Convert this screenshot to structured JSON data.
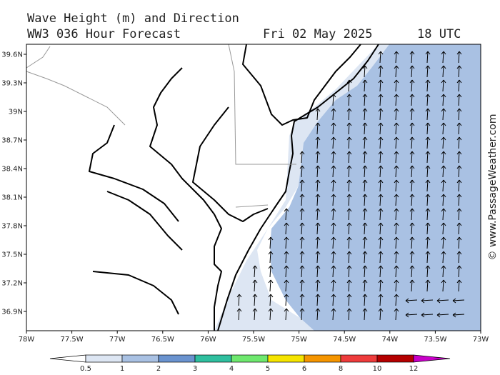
{
  "header": {
    "title": "Wave Height (m) and Direction",
    "subtitle": "WW3 036 Hour Forecast",
    "date": "Fri 02 May 2025",
    "time": "18 UTC"
  },
  "map": {
    "lat_labels": [
      "39.6N",
      "39.3N",
      "39N",
      "38.7N",
      "38.4N",
      "38.1N",
      "37.8N",
      "37.5N",
      "37.2N",
      "36.9N"
    ],
    "lon_labels": [
      "78W",
      "77.5W",
      "77W",
      "76.5W",
      "76W",
      "75.5W",
      "75W",
      "74.5W",
      "74W",
      "73.5W",
      "73W"
    ]
  },
  "legend": {
    "labels": [
      "0.5",
      "1",
      "2",
      "3",
      "4",
      "5",
      "6",
      "8",
      "10",
      "12"
    ],
    "colors": [
      "#ffffff",
      "#dde6f3",
      "#a9c1e3",
      "#6a93cf",
      "#2fbf9f",
      "#6ee86e",
      "#f5e400",
      "#f59500",
      "#ee3c3c",
      "#b40000",
      "#c800c8"
    ]
  },
  "watermark": "© www.PassageWeather.com"
}
